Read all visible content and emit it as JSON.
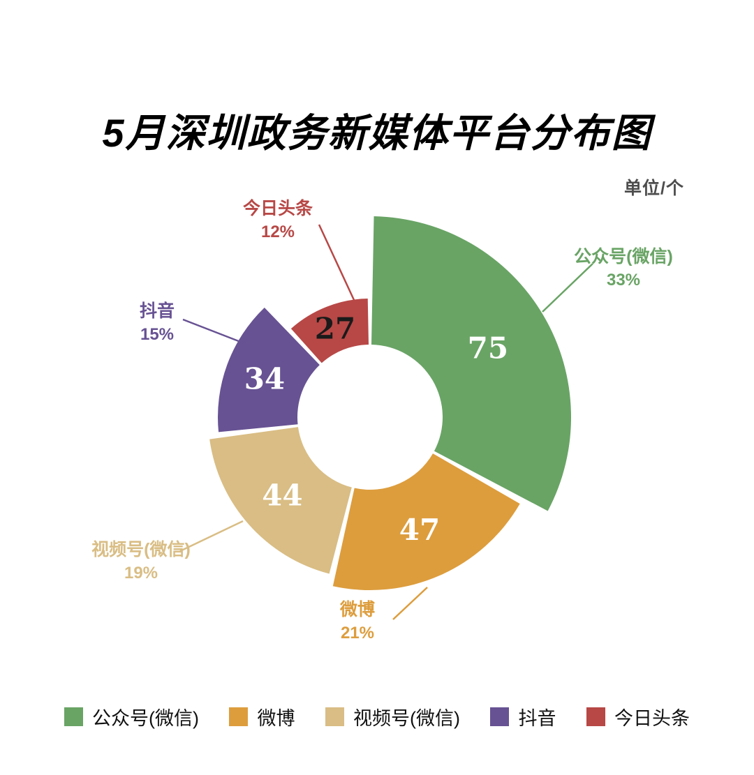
{
  "title": "5月深圳政务新媒体平台分布图",
  "unit_label": "单位/个",
  "chart_data": {
    "type": "pie",
    "variant": "rose-donut",
    "start_angle_deg": 0,
    "direction": "clockwise",
    "total": 227,
    "series": [
      {
        "name": "公众号(微信)",
        "value": 75,
        "percent": "33%",
        "color": "#69a465",
        "value_text_color": "#ffffff"
      },
      {
        "name": "微博",
        "value": 47,
        "percent": "21%",
        "color": "#dd9d3d",
        "value_text_color": "#ffffff"
      },
      {
        "name": "视频号(微信)",
        "value": 44,
        "percent": "19%",
        "color": "#d9bd84",
        "value_text_color": "#ffffff"
      },
      {
        "name": "抖音",
        "value": 34,
        "percent": "15%",
        "color": "#675293",
        "value_text_color": "#ffffff"
      },
      {
        "name": "今日头条",
        "value": 27,
        "percent": "12%",
        "color": "#b74846",
        "value_text_color": "#1a1a1a"
      }
    ],
    "legend": [
      "公众号(微信)",
      "微博",
      "视频号(微信)",
      "抖音",
      "今日头条"
    ]
  }
}
